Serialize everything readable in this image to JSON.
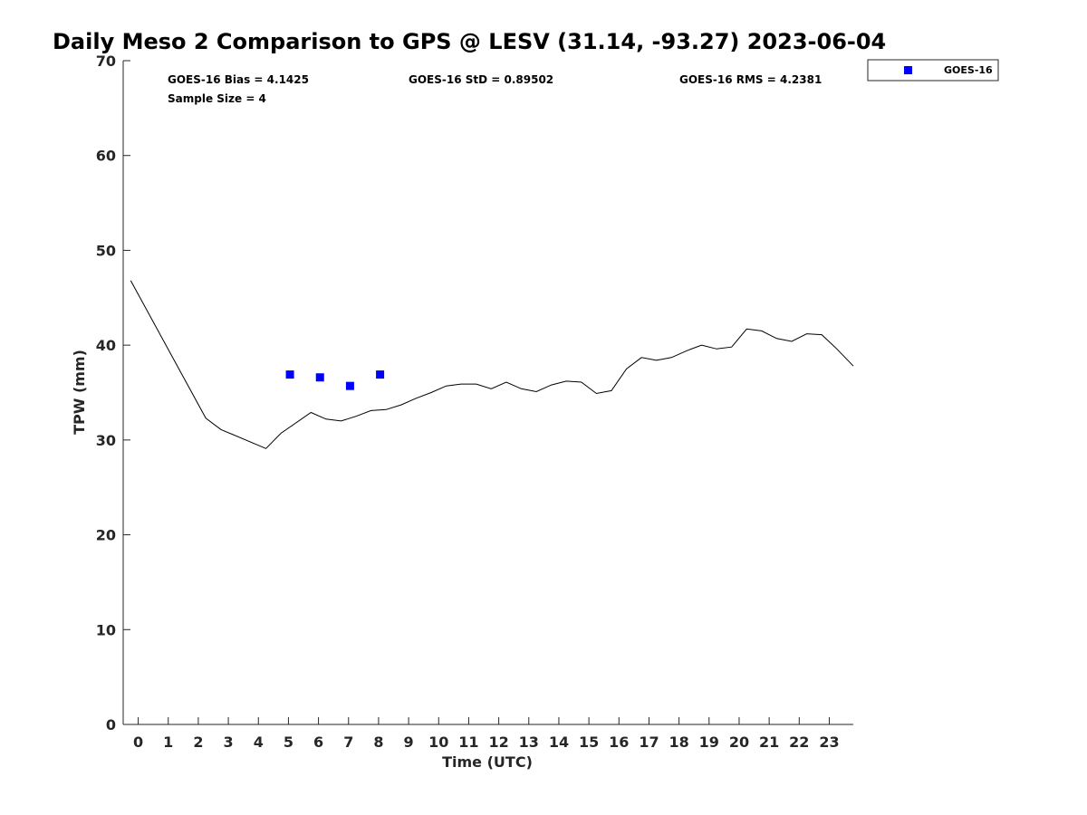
{
  "colors": {
    "goes": "#0000ff",
    "gps": "#000000",
    "axis": "#262626"
  },
  "chart_data": {
    "type": "line",
    "title": "Daily Meso 2 Comparison to GPS @ LESV (31.14, -93.27) 2023-06-04",
    "xlabel": "Time (UTC)",
    "ylabel": "TPW (mm)",
    "xlim": [
      -0.5,
      23.8
    ],
    "ylim": [
      0,
      70
    ],
    "xticks": [
      0,
      1,
      2,
      3,
      4,
      5,
      6,
      7,
      8,
      9,
      10,
      11,
      12,
      13,
      14,
      15,
      16,
      17,
      18,
      19,
      20,
      21,
      22,
      23
    ],
    "yticks": [
      0,
      10,
      20,
      30,
      40,
      50,
      60,
      70
    ],
    "stats": {
      "bias": "GOES-16 Bias = 4.1425",
      "std": "GOES-16 StD = 0.89502",
      "rms": "GOES-16 RMS = 4.2381",
      "sample": "Sample Size = 4"
    },
    "legend": {
      "label": "GOES-16",
      "location": "outside top-right"
    },
    "series": [
      {
        "name": "GPS",
        "kind": "line",
        "x": [
          -0.25,
          2.25,
          2.75,
          4.25,
          4.75,
          5.75,
          6.25,
          6.75,
          7.25,
          7.75,
          8.25,
          8.75,
          9.25,
          9.75,
          10.25,
          10.75,
          11.25,
          11.75,
          12.25,
          12.75,
          13.25,
          13.75,
          14.25,
          14.75,
          15.25,
          15.75,
          16.25,
          16.75,
          17.25,
          17.75,
          18.25,
          18.75,
          19.25,
          19.75,
          20.25,
          20.75,
          21.25,
          21.75,
          22.25,
          22.75,
          23.25,
          23.8
        ],
        "y": [
          46.8,
          32.3,
          31.1,
          29.1,
          30.7,
          32.9,
          32.2,
          32.0,
          32.5,
          33.1,
          33.2,
          33.7,
          34.4,
          35.0,
          35.7,
          35.9,
          35.9,
          35.4,
          36.1,
          35.4,
          35.1,
          35.8,
          36.2,
          36.1,
          34.9,
          35.2,
          37.5,
          38.7,
          38.4,
          38.7,
          39.4,
          40.0,
          39.6,
          39.8,
          41.7,
          41.5,
          40.7,
          40.4,
          41.2,
          41.1,
          39.6,
          37.8
        ]
      },
      {
        "name": "GOES-16",
        "kind": "scatter",
        "x": [
          5.05,
          6.05,
          7.05,
          8.05
        ],
        "y": [
          36.9,
          36.6,
          35.7,
          36.9
        ]
      }
    ]
  }
}
